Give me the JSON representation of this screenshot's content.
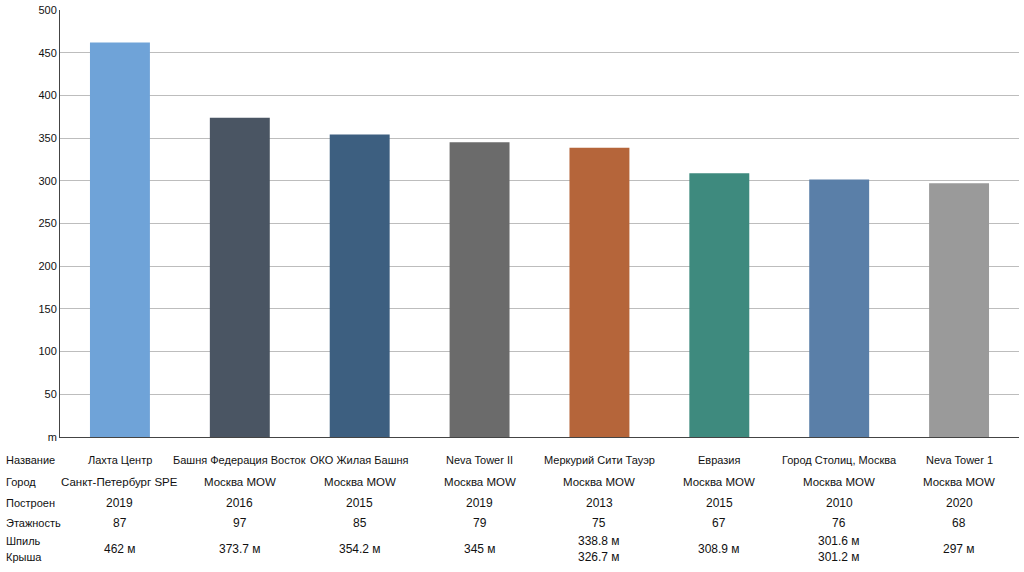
{
  "chart_data": {
    "type": "bar",
    "categories": [
      "Лахта Центр",
      "Башня Федерация Восток",
      "ОКО Жилая Башня",
      "Neva Tower II",
      "Меркурий Сити Тауэр",
      "Евразия",
      "Город Столиц, Москва",
      "Neva Tower 1"
    ],
    "values": [
      462,
      373.7,
      354.2,
      345,
      338.8,
      308.9,
      301.6,
      297
    ],
    "value_labels": [
      "462 м",
      "373.7 м",
      "354.2 м",
      "345 м",
      "338.8 м",
      "308.9 м",
      "301.6 м",
      "297 м"
    ],
    "colors": [
      "#6fa3d8",
      "#4a5563",
      "#3d5f80",
      "#6b6b6b",
      "#b5653a",
      "#3e8a7e",
      "#5a7fa8",
      "#9a9a9a"
    ],
    "ylim": [
      0,
      500
    ],
    "yticks": [
      {
        "value": 0,
        "label": "m"
      },
      50,
      100,
      150,
      200,
      250,
      300,
      350,
      400,
      450,
      500
    ],
    "grid": true,
    "tick_labels": "y",
    "table": {
      "row_labels": [
        "Название",
        "Город",
        "Построен",
        "Этажность",
        "Шпиль",
        "Крыша"
      ],
      "city": [
        "Санкт-Петербург SPE",
        "Москва MOW",
        "Москва MOW",
        "Москва MOW",
        "Москва MOW",
        "Москва MOW",
        "Москва MOW",
        "Москва MOW"
      ],
      "built": [
        2019,
        2016,
        2015,
        2019,
        2013,
        2015,
        2010,
        2020
      ],
      "floors": [
        87,
        97,
        85,
        79,
        75,
        67,
        76,
        68
      ],
      "roof": [
        null,
        null,
        null,
        null,
        326.7,
        null,
        301.2,
        null
      ],
      "roof_labels": [
        null,
        null,
        null,
        null,
        "326.7 м",
        null,
        "301.2 м",
        null
      ]
    }
  }
}
